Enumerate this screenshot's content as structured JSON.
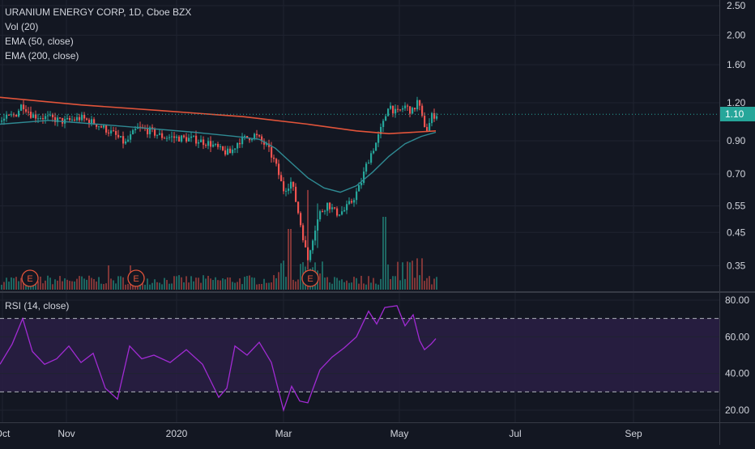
{
  "legend": {
    "symbol": "URANIUM ENERGY CORP, 1D, Cboe BZX",
    "vol": "Vol (20)",
    "ema50": "EMA (50, close)",
    "ema200": "EMA (200, close)",
    "rsi": "RSI (14, close)"
  },
  "last_price_label": "1.10",
  "colors": {
    "background": "#131722",
    "up": "#26a69a",
    "down": "#ef5350",
    "ema50": "#2f8a93",
    "ema200": "#e2543a",
    "rsi": "#a12bd3",
    "rsi_band": "#2a1f44",
    "grid": "#1f2330",
    "text": "#d1d4dc"
  },
  "chart_data": [
    {
      "type": "candlestick",
      "name": "URANIUM ENERGY CORP daily price",
      "scale": "log",
      "y_ticks": [
        "2.50",
        "2.00",
        "1.60",
        "1.20",
        "0.90",
        "0.70",
        "0.55",
        "0.45",
        "0.35"
      ],
      "x_ticks": [
        "Oct",
        "Nov",
        "2020",
        "Mar",
        "May",
        "Jul",
        "Sep"
      ],
      "last_price": 1.1,
      "earnings_markers": [
        "E",
        "E",
        "E"
      ],
      "earnings_dates": [
        "Oct",
        "Dec",
        "Mar"
      ],
      "price_path": [
        [
          0,
          1.04
        ],
        [
          20,
          1.1
        ],
        [
          28,
          1.19
        ],
        [
          40,
          1.09
        ],
        [
          60,
          1.07
        ],
        [
          80,
          1.04
        ],
        [
          100,
          1.07
        ],
        [
          120,
          1.02
        ],
        [
          140,
          0.95
        ],
        [
          155,
          0.88
        ],
        [
          170,
          0.99
        ],
        [
          185,
          0.97
        ],
        [
          200,
          0.93
        ],
        [
          220,
          0.92
        ],
        [
          240,
          0.91
        ],
        [
          260,
          0.88
        ],
        [
          275,
          0.83
        ],
        [
          285,
          0.82
        ],
        [
          295,
          0.9
        ],
        [
          315,
          0.94
        ],
        [
          330,
          0.86
        ],
        [
          340,
          0.76
        ],
        [
          350,
          0.62
        ],
        [
          360,
          0.66
        ],
        [
          370,
          0.5
        ],
        [
          380,
          0.36
        ],
        [
          385,
          0.42
        ],
        [
          395,
          0.52
        ],
        [
          405,
          0.56
        ],
        [
          415,
          0.52
        ],
        [
          425,
          0.53
        ],
        [
          435,
          0.57
        ],
        [
          445,
          0.64
        ],
        [
          455,
          0.78
        ],
        [
          465,
          0.89
        ],
        [
          475,
          1.05
        ],
        [
          480,
          1.19
        ],
        [
          490,
          1.1
        ],
        [
          500,
          1.17
        ],
        [
          510,
          1.12
        ],
        [
          516,
          1.22
        ],
        [
          522,
          1.05
        ],
        [
          528,
          0.97
        ],
        [
          533,
          1.08
        ],
        [
          538,
          1.1
        ]
      ],
      "ema50_path": [
        [
          0,
          1.02
        ],
        [
          60,
          1.05
        ],
        [
          120,
          1.02
        ],
        [
          180,
          0.99
        ],
        [
          240,
          0.96
        ],
        [
          290,
          0.93
        ],
        [
          320,
          0.91
        ],
        [
          340,
          0.85
        ],
        [
          360,
          0.76
        ],
        [
          380,
          0.68
        ],
        [
          400,
          0.63
        ],
        [
          420,
          0.61
        ],
        [
          440,
          0.64
        ],
        [
          460,
          0.71
        ],
        [
          480,
          0.8
        ],
        [
          500,
          0.88
        ],
        [
          520,
          0.93
        ],
        [
          538,
          0.96
        ]
      ],
      "ema200_path": [
        [
          0,
          1.25
        ],
        [
          100,
          1.18
        ],
        [
          200,
          1.13
        ],
        [
          300,
          1.08
        ],
        [
          380,
          1.02
        ],
        [
          440,
          0.97
        ],
        [
          480,
          0.95
        ],
        [
          510,
          0.96
        ],
        [
          538,
          0.97
        ]
      ]
    },
    {
      "type": "line",
      "name": "RSI (14, close)",
      "y_ticks": [
        "80.00",
        "60.00",
        "40.00",
        "20.00"
      ],
      "band": [
        30,
        70
      ],
      "rsi_path": [
        [
          0,
          45
        ],
        [
          15,
          56
        ],
        [
          28,
          70
        ],
        [
          40,
          52
        ],
        [
          55,
          45
        ],
        [
          70,
          48
        ],
        [
          85,
          55
        ],
        [
          100,
          46
        ],
        [
          115,
          51
        ],
        [
          130,
          32
        ],
        [
          145,
          26
        ],
        [
          160,
          55
        ],
        [
          175,
          48
        ],
        [
          190,
          50
        ],
        [
          210,
          46
        ],
        [
          230,
          53
        ],
        [
          250,
          45
        ],
        [
          270,
          27
        ],
        [
          280,
          32
        ],
        [
          290,
          55
        ],
        [
          305,
          50
        ],
        [
          320,
          57
        ],
        [
          335,
          46
        ],
        [
          350,
          20
        ],
        [
          360,
          33
        ],
        [
          370,
          25
        ],
        [
          380,
          24
        ],
        [
          395,
          42
        ],
        [
          410,
          49
        ],
        [
          425,
          54
        ],
        [
          440,
          60
        ],
        [
          455,
          74
        ],
        [
          465,
          67
        ],
        [
          475,
          76
        ],
        [
          490,
          77
        ],
        [
          500,
          66
        ],
        [
          510,
          72
        ],
        [
          518,
          58
        ],
        [
          524,
          53
        ],
        [
          532,
          56
        ],
        [
          538,
          59
        ]
      ]
    },
    {
      "type": "bar",
      "name": "Vol (20)",
      "volume_profile": "low with spikes near Mar and Apr-May"
    }
  ]
}
